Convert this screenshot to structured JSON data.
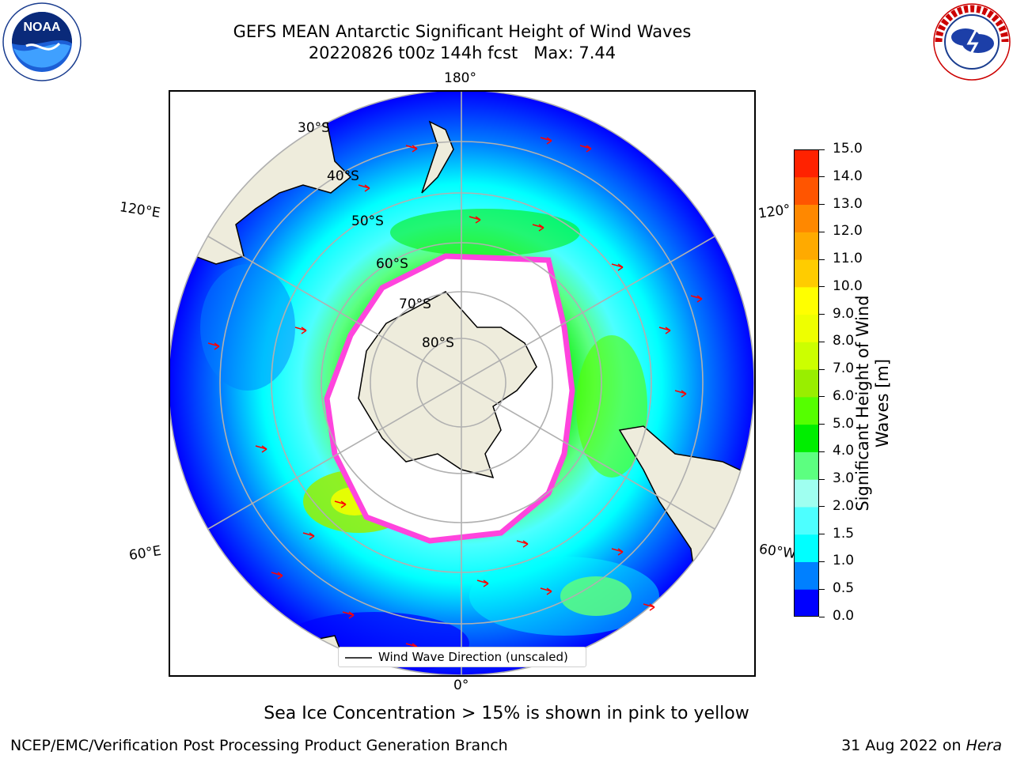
{
  "title_line1": "GEFS MEAN Antarctic Significant Height of Wind Waves",
  "title_line2": "20220826 t00z 144h fcst   Max: 7.44",
  "logos": {
    "left": "NOAA",
    "right": "NATIONAL WEATHER SERVICE"
  },
  "map": {
    "projection": "south-polar-stereographic",
    "lon_labels": {
      "top": "180°",
      "bottom": "0°",
      "left_upper": "120°E",
      "left_lower": "60°E",
      "right_upper": "120°",
      "right_lower": "60°W"
    },
    "lat_labels": [
      "30°S",
      "40°S",
      "50°S",
      "60°S",
      "70°S",
      "80°S"
    ],
    "legend_label": "Wind Wave Direction (unscaled)",
    "colors": {
      "land": "#eeecdc",
      "graticule": "#b0b0b0",
      "arrow": "#ff0000",
      "ice_edge": "#ff44dd"
    }
  },
  "colorbar": {
    "label_line1": "Significant Height of Wind",
    "label_line2": "Waves [m]",
    "ticks": [
      "0.0",
      "0.5",
      "1.0",
      "1.5",
      "2.0",
      "3.0",
      "4.0",
      "5.0",
      "6.0",
      "7.0",
      "8.0",
      "9.0",
      "10.0",
      "11.0",
      "12.0",
      "13.0",
      "14.0",
      "15.0"
    ],
    "colors": [
      "#0000ff",
      "#0080ff",
      "#00ffff",
      "#4dffff",
      "#9ffff0",
      "#5cff80",
      "#00ee00",
      "#55ff00",
      "#99ee00",
      "#ccff00",
      "#eeff00",
      "#ffff00",
      "#ffcc00",
      "#ffaa00",
      "#ff8800",
      "#ff5500",
      "#ff2200"
    ]
  },
  "sea_ice_note": "Sea Ice Concentration > 15% is shown in pink to yellow",
  "footer_left": "NCEP/EMC/Verification Post Processing Product Generation Branch",
  "footer_right_date": "31 Aug 2022 on ",
  "footer_right_machine": "Hera"
}
